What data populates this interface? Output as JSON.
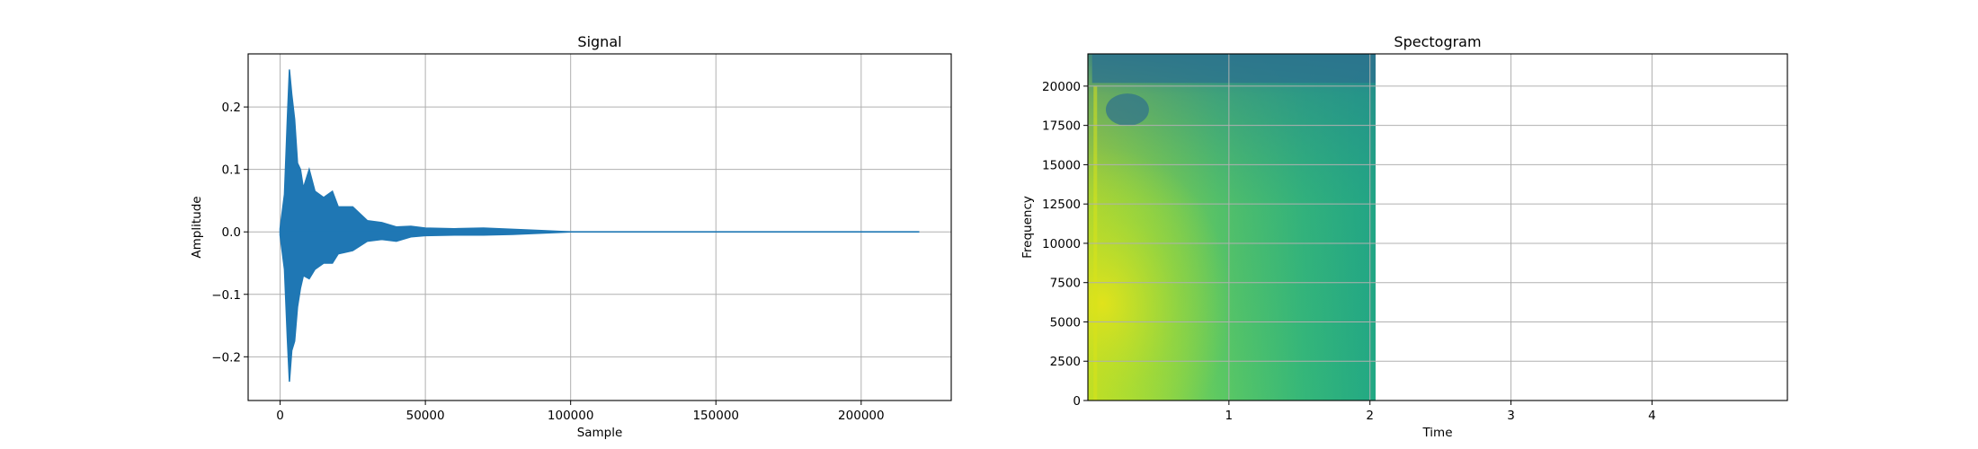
{
  "chart_data": [
    {
      "type": "line",
      "title": "Signal",
      "xlabel": "Sample",
      "ylabel": "Amplitude",
      "xlim": [
        -11000,
        231000
      ],
      "ylim": [
        -0.27,
        0.285
      ],
      "xticks": [
        0,
        50000,
        100000,
        150000,
        200000
      ],
      "xtick_labels": [
        "0",
        "50000",
        "100000",
        "150000",
        "200000"
      ],
      "yticks": [
        -0.2,
        -0.1,
        0.0,
        0.1,
        0.2
      ],
      "ytick_labels": [
        "−0.2",
        "−0.1",
        "0.0",
        "0.1",
        "0.2"
      ],
      "grid": true,
      "color": "#1f77b4",
      "series": [
        {
          "x": [
            0,
            1500,
            2500,
            3200,
            4000,
            5000,
            6000,
            7000,
            8000,
            10000,
            12000,
            15000,
            18000,
            20000,
            25000,
            30000,
            35000,
            40000,
            45000,
            50000,
            60000,
            70000,
            80000,
            90000,
            100000,
            150000,
            200000,
            220000
          ],
          "upper": [
            0.005,
            0.06,
            0.18,
            0.26,
            0.22,
            0.18,
            0.11,
            0.1,
            0.07,
            0.1,
            0.065,
            0.055,
            0.065,
            0.04,
            0.04,
            0.018,
            0.015,
            0.008,
            0.009,
            0.006,
            0.005,
            0.006,
            0.004,
            0.002,
            0.0,
            0.0,
            0.0,
            0.0
          ],
          "lower": [
            -0.005,
            -0.06,
            -0.17,
            -0.24,
            -0.19,
            -0.175,
            -0.12,
            -0.09,
            -0.07,
            -0.075,
            -0.06,
            -0.05,
            -0.05,
            -0.035,
            -0.03,
            -0.015,
            -0.012,
            -0.015,
            -0.008,
            -0.006,
            -0.005,
            -0.005,
            -0.004,
            -0.002,
            0.0,
            0.0,
            0.0,
            0.0
          ]
        }
      ]
    },
    {
      "type": "heatmap",
      "title": "Spectogram",
      "xlabel": "Time",
      "ylabel": "Frequency",
      "xlim": [
        0,
        4.96
      ],
      "ylim": [
        0,
        22050
      ],
      "data_extent_x": [
        0,
        2.04
      ],
      "xticks": [
        1,
        2,
        3,
        4
      ],
      "xtick_labels": [
        "1",
        "2",
        "3",
        "4"
      ],
      "yticks": [
        0,
        2500,
        5000,
        7500,
        10000,
        12500,
        15000,
        17500,
        20000
      ],
      "ytick_labels": [
        "0",
        "2500",
        "5000",
        "7500",
        "10000",
        "12500",
        "15000",
        "17500",
        "20000"
      ],
      "grid": true,
      "colormap": "viridis"
    }
  ]
}
